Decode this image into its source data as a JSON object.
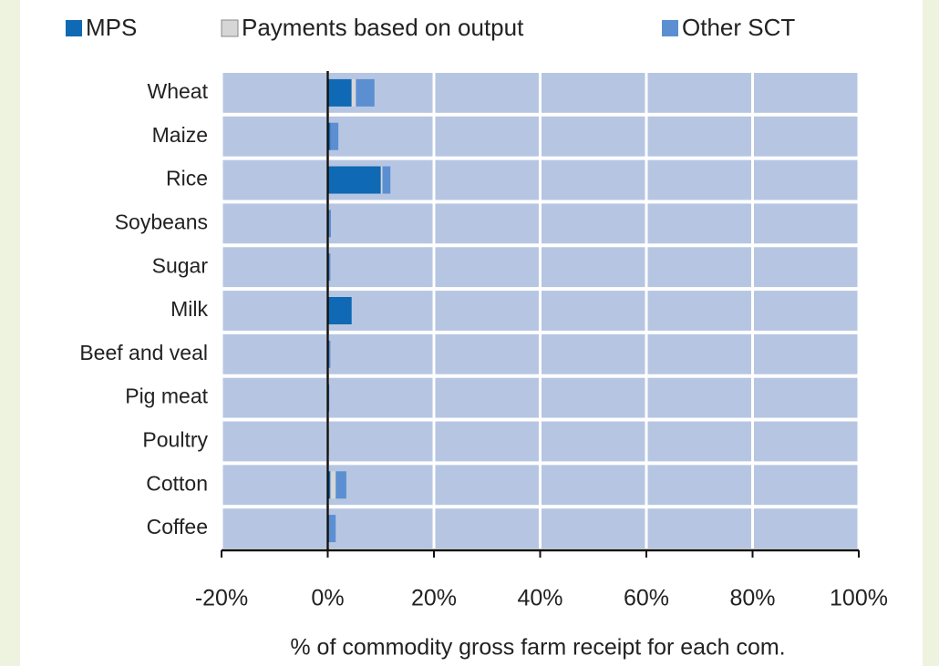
{
  "chart_data": {
    "type": "stacked-horizontal-bar",
    "xlabel": "% of commodity gross farm receipt for each com.",
    "categories": [
      "Wheat",
      "Maize",
      "Rice",
      "Soybeans",
      "Sugar",
      "Milk",
      "Beef and veal",
      "Pig meat",
      "Poultry",
      "Cotton",
      "Coffee"
    ],
    "series": [
      {
        "name": "MPS",
        "color": "#0f69b4",
        "values": [
          4.5,
          0.5,
          10,
          0,
          0,
          4.5,
          0,
          0,
          0,
          0.5,
          0
        ]
      },
      {
        "name": "Payments based on output",
        "color": "#d6d6d6",
        "values": [
          0.8,
          0,
          0.3,
          0,
          0,
          0,
          0,
          0,
          0,
          1,
          0
        ]
      },
      {
        "name": "Other SCT",
        "color": "#5b8fd2",
        "values": [
          3.5,
          1.5,
          1.5,
          0.6,
          0.5,
          0,
          0.5,
          0.3,
          0.2,
          2,
          1.5
        ]
      }
    ],
    "xlim": [
      -20,
      100
    ],
    "xticks": [
      {
        "value": -20,
        "label": "-20%"
      },
      {
        "value": 0,
        "label": "0%"
      },
      {
        "value": 20,
        "label": "20%"
      },
      {
        "value": 40,
        "label": "40%"
      },
      {
        "value": 60,
        "label": "60%"
      },
      {
        "value": 80,
        "label": "80%"
      },
      {
        "value": 100,
        "label": "100%"
      }
    ],
    "band_color": "#b6c6e2"
  }
}
